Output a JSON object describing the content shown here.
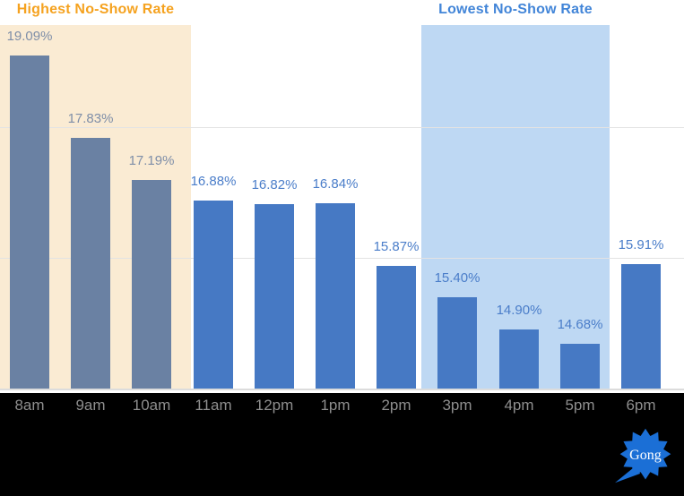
{
  "page": {
    "background": "#ffffff"
  },
  "annotations": {
    "highest": {
      "label": "Highest No-Show Rate",
      "color": "#f5a21f",
      "band_color": "#faebd3"
    },
    "lowest": {
      "label": "Lowest No-Show Rate",
      "color": "#4285d8",
      "band_color": "#bed8f3"
    }
  },
  "chart_data": {
    "type": "bar",
    "title": "",
    "xlabel": "",
    "ylabel": "",
    "categories": [
      "8am",
      "9am",
      "10am",
      "11am",
      "12pm",
      "1pm",
      "2pm",
      "3pm",
      "4pm",
      "5pm",
      "6pm"
    ],
    "values": [
      19.09,
      17.83,
      17.19,
      16.88,
      16.82,
      16.84,
      15.87,
      15.4,
      14.9,
      14.68,
      15.91
    ],
    "value_labels": [
      "19.09%",
      "17.83%",
      "17.19%",
      "16.88%",
      "16.82%",
      "16.84%",
      "15.87%",
      "15.40%",
      "14.90%",
      "14.68%",
      "15.91%"
    ],
    "ylim": [
      14,
      19.6
    ],
    "gridline_values": [
      16,
      18
    ],
    "grid": "horizontal",
    "legend": "none",
    "highlight_bands": [
      {
        "label": "Highest No-Show Rate",
        "categories": [
          "8am",
          "9am",
          "10am"
        ]
      },
      {
        "label": "Lowest No-Show Rate",
        "categories": [
          "3pm",
          "4pm",
          "5pm"
        ]
      }
    ],
    "bar_colors": {
      "highest_band": "#6a81a3",
      "default": "#4679c4"
    },
    "label_colors": {
      "highest_band": "#7e8ea8",
      "default": "#4a7dc9"
    }
  },
  "footer": {
    "background": "#000000",
    "tick_color": "#8e8e8e",
    "logo_text": "Gong",
    "logo_color": "#1b6fd6"
  }
}
